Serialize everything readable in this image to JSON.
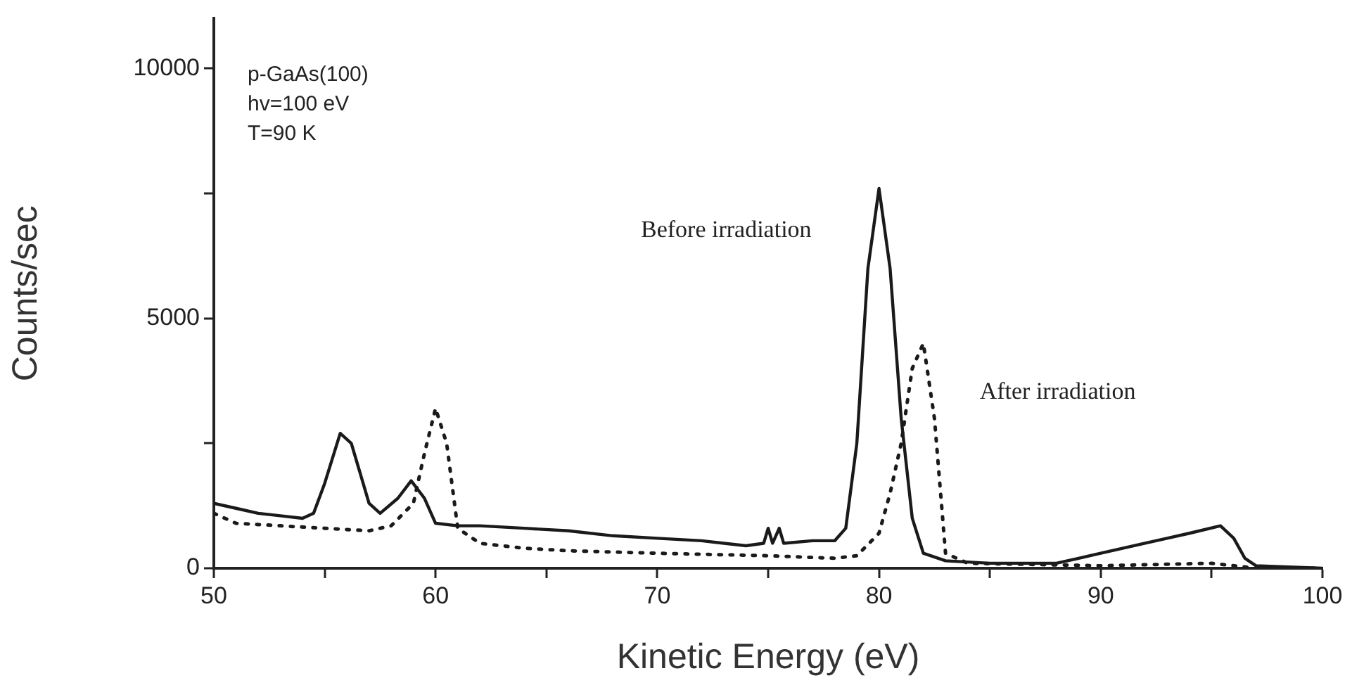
{
  "chart_data": {
    "type": "line",
    "xlabel": "Kinetic Energy (eV)",
    "ylabel": "Counts/sec",
    "annotations": [
      "p-GaAs(100)",
      "hv=100 eV",
      "T=90 K"
    ],
    "xlim": [
      50,
      100
    ],
    "ylim": [
      0,
      11000
    ],
    "xticks": [
      50,
      {
        "value": 55,
        "label": null
      },
      60,
      {
        "value": 65,
        "label": null
      },
      70,
      {
        "value": 75,
        "label": null
      },
      80,
      {
        "value": 85,
        "label": null
      },
      90,
      {
        "value": 95,
        "label": null
      },
      100
    ],
    "yticks": [
      0,
      {
        "value": 2500,
        "label": null
      },
      5000,
      {
        "value": 7500,
        "label": null
      },
      10000
    ],
    "grid": false,
    "legend": false,
    "marker": "none",
    "series": [
      {
        "name": "Before irradiation",
        "color": "#1a1a1a",
        "line_style": "solid",
        "x": [
          50,
          51,
          52,
          53,
          54,
          54.5,
          55,
          55.7,
          56.2,
          57,
          57.5,
          58.3,
          58.9,
          59.5,
          60,
          61,
          62,
          64,
          66,
          68,
          70,
          72,
          74,
          74.8,
          75,
          75.2,
          75.5,
          75.7,
          77,
          78,
          78.5,
          79,
          79.5,
          80,
          80.5,
          81,
          81.5,
          82,
          83,
          85,
          88,
          90,
          92,
          94,
          95.4,
          96,
          96.5,
          97,
          100
        ],
        "values": [
          1300,
          1200,
          1100,
          1050,
          1000,
          1100,
          1700,
          2700,
          2500,
          1300,
          1100,
          1400,
          1750,
          1400,
          900,
          850,
          850,
          800,
          750,
          650,
          600,
          550,
          450,
          500,
          800,
          500,
          800,
          500,
          550,
          550,
          800,
          2500,
          6000,
          7600,
          6000,
          3000,
          1000,
          300,
          150,
          100,
          100,
          300,
          500,
          700,
          850,
          600,
          200,
          50,
          0
        ]
      },
      {
        "name": "After irradiation",
        "color": "#1a1a1a",
        "line_style": "dotted",
        "x": [
          50,
          51,
          53,
          55,
          57,
          58,
          59,
          59.5,
          60,
          60.5,
          61,
          62,
          64,
          66,
          70,
          75,
          78,
          79,
          80,
          80.5,
          81,
          81.5,
          82,
          82.5,
          83,
          84,
          90,
          95,
          97,
          100
        ],
        "values": [
          1100,
          900,
          850,
          800,
          750,
          850,
          1300,
          2300,
          3200,
          2500,
          800,
          500,
          400,
          350,
          300,
          250,
          200,
          250,
          700,
          1500,
          2500,
          4000,
          4500,
          3000,
          300,
          100,
          50,
          100,
          0,
          0
        ]
      }
    ]
  }
}
